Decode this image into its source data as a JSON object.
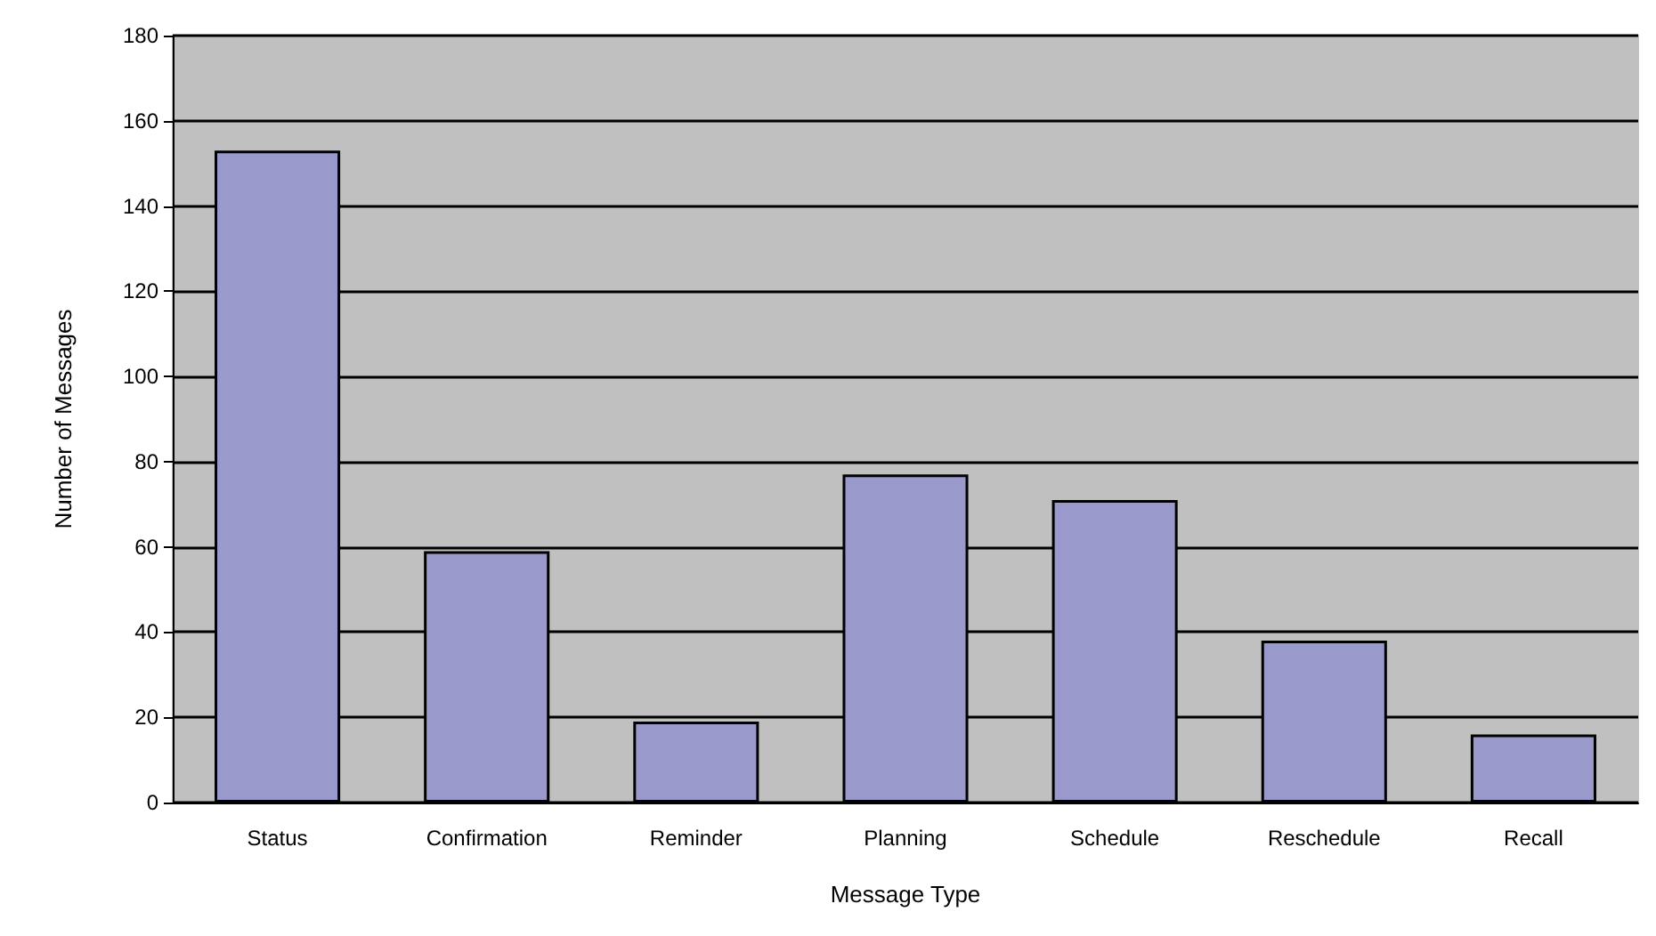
{
  "chart_data": {
    "type": "bar",
    "xlabel": "Message Type",
    "ylabel": "Number of Messages",
    "categories": [
      "Status",
      "Confirmation",
      "Reminder",
      "Planning",
      "Schedule",
      "Reschedule",
      "Recall"
    ],
    "values": [
      153,
      59,
      19,
      77,
      71,
      38,
      16
    ],
    "color": "#9999cc",
    "ylim": [
      0,
      180
    ],
    "yticks": [
      0,
      20,
      40,
      60,
      80,
      100,
      120,
      140,
      160,
      180
    ],
    "grid": "y"
  }
}
